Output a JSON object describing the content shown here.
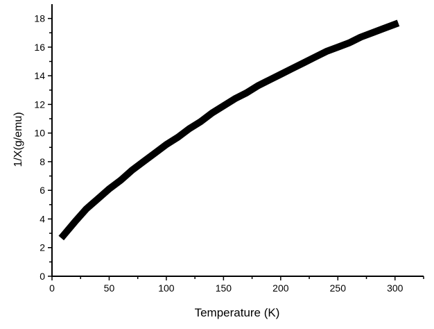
{
  "chart_data": {
    "type": "line",
    "title": "",
    "xlabel": "Temperature (K)",
    "ylabel": "1/X(g/emu)",
    "xlim": [
      0,
      325
    ],
    "ylim": [
      0,
      19
    ],
    "xticks": [
      0,
      50,
      100,
      150,
      200,
      250,
      300
    ],
    "yticks": [
      0,
      2,
      4,
      6,
      8,
      10,
      12,
      14,
      16,
      18
    ],
    "grid": false,
    "line_color": "#000000",
    "series": [
      {
        "x": [
          10,
          20,
          30,
          40,
          50,
          60,
          70,
          80,
          90,
          100,
          110,
          120,
          130,
          140,
          150,
          160,
          170,
          180,
          190,
          200,
          210,
          220,
          230,
          240,
          250,
          260,
          270,
          280,
          290,
          300
        ],
        "y": [
          2.85,
          3.8,
          4.7,
          5.4,
          6.1,
          6.7,
          7.4,
          8.0,
          8.6,
          9.2,
          9.7,
          10.3,
          10.8,
          11.4,
          11.9,
          12.4,
          12.8,
          13.3,
          13.7,
          14.1,
          14.5,
          14.9,
          15.3,
          15.7,
          16.0,
          16.3,
          16.7,
          17.0,
          17.3,
          17.6
        ]
      }
    ]
  }
}
